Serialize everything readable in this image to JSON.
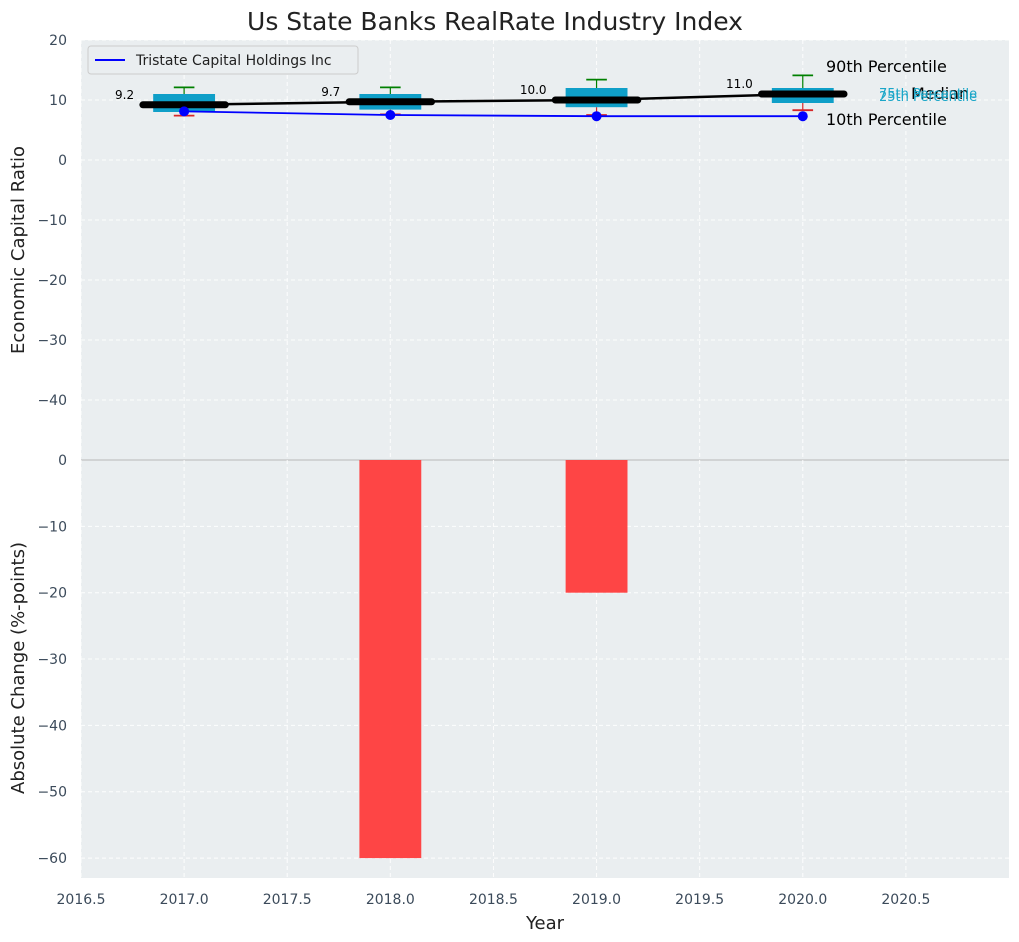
{
  "chart_data": {
    "type": "box-line-bar",
    "title": "Us State Banks RealRate Industry Index",
    "xlabel": "Year",
    "top_panel": {
      "ylabel": "Economic Capital Ratio",
      "ylim": [
        -50,
        20
      ],
      "yticks": [
        20,
        10,
        0,
        -10,
        -20,
        -30,
        -40
      ],
      "boxes": [
        {
          "year": 2017,
          "p10": 7.4,
          "p25": 8.0,
          "median": 9.2,
          "p75": 11.0,
          "p90": 12.1
        },
        {
          "year": 2018,
          "p10": 7.6,
          "p25": 8.4,
          "median": 9.7,
          "p75": 11.0,
          "p90": 12.1
        },
        {
          "year": 2019,
          "p10": 7.5,
          "p25": 8.8,
          "median": 10.0,
          "p75": 12.0,
          "p90": 13.4
        },
        {
          "year": 2020,
          "p10": 8.3,
          "p25": 9.5,
          "median": 11.0,
          "p75": 12.0,
          "p90": 14.1
        }
      ],
      "median_labels": [
        "9.2",
        "9.7",
        "10.0",
        "11.0"
      ],
      "series": [
        {
          "name": "Tristate Capital Holdings Inc",
          "x": [
            2017,
            2018,
            2019,
            2020
          ],
          "values": [
            8.1,
            7.5,
            7.3,
            7.3
          ],
          "color": "#0000ff"
        }
      ],
      "annotations": {
        "p90": "90th Percentile",
        "median": "Median",
        "p10": "10th Percentile",
        "p75": "75th Percentile",
        "p25": "25th Percentile"
      }
    },
    "bottom_panel": {
      "ylabel": "Absolute Change (%-points)",
      "ylim": [
        -63,
        0
      ],
      "yticks": [
        0,
        -10,
        -20,
        -30,
        -40,
        -50,
        -60
      ],
      "bars": [
        {
          "year": 2018,
          "value": -60
        },
        {
          "year": 2019,
          "value": -20
        }
      ],
      "bar_color": "#ff3b3b"
    },
    "xlim": [
      2016.5,
      2021
    ],
    "xticks": [
      "2016.5",
      "2017.0",
      "2017.5",
      "2018.0",
      "2018.5",
      "2019.0",
      "2019.5",
      "2020.0",
      "2020.5"
    ],
    "colors": {
      "box": "#0f9fc8",
      "median": "#000000",
      "whisker_high": "#008000",
      "whisker_low": "#d62728",
      "panel_bg": "#eaeef0"
    }
  }
}
